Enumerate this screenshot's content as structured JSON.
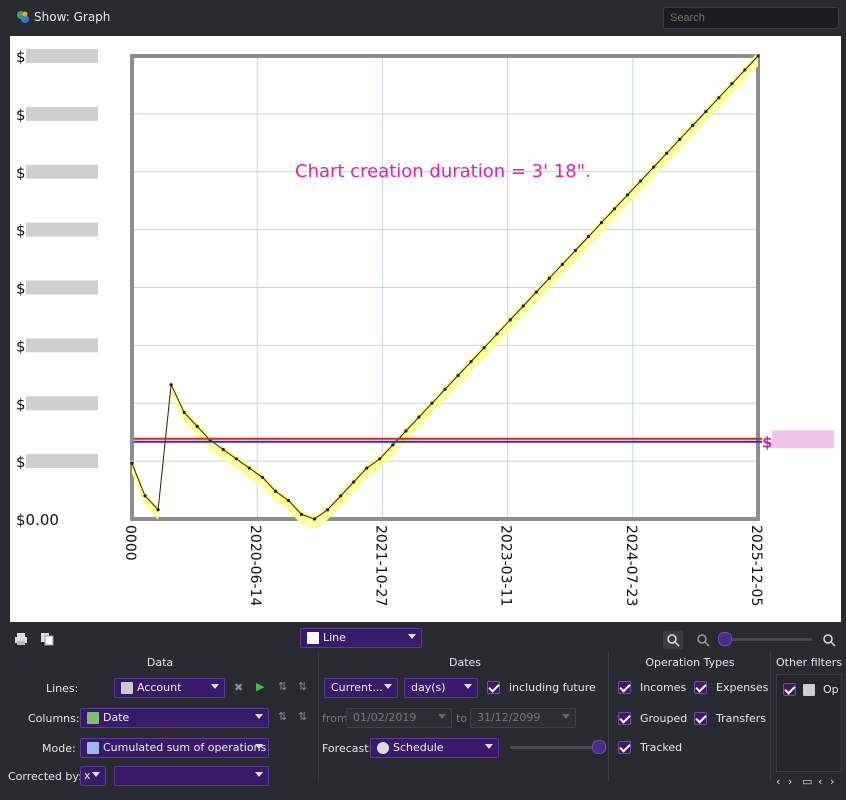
{
  "window": {
    "title": "Show: Graph",
    "search_placeholder": "Search"
  },
  "chart_data": {
    "type": "line",
    "annotation": "Chart creation duration = 3' 18\".",
    "y_tick_labels": [
      "$",
      "$",
      "$",
      "$",
      "$",
      "$",
      "$",
      "$",
      "$0.00"
    ],
    "x_tick_labels": [
      "0000",
      "2020-06-14",
      "2021-10-27",
      "2023-03-11",
      "2024-07-23",
      "2025-12-05"
    ],
    "limit_label": "$",
    "grid": true,
    "legend": "none",
    "series": [
      {
        "values": [
          0.12,
          0.05,
          0.02,
          0.29,
          0.23,
          0.2,
          0.17,
          0.15,
          0.13,
          0.11,
          0.09,
          0.06,
          0.04,
          0.01,
          0.0,
          0.02,
          0.05,
          0.08,
          0.11,
          0.13,
          0.16,
          0.19,
          0.22,
          0.25,
          0.28,
          0.31,
          0.34,
          0.37,
          0.4,
          0.43,
          0.46,
          0.49,
          0.52,
          0.55,
          0.58,
          0.61,
          0.64,
          0.67,
          0.7,
          0.73,
          0.76,
          0.79,
          0.82,
          0.85,
          0.88,
          0.91,
          0.94,
          0.97,
          1.0
        ]
      }
    ],
    "limit_value": 0.17,
    "colors": {
      "line": "#222222",
      "band": "#ffff99",
      "limit_red": "#e0201a",
      "limit_blue": "#2a2ad8",
      "annotation": "#e020b0"
    }
  },
  "controls": {
    "chart_type": "Line",
    "section_data": "Data",
    "section_dates": "Dates",
    "section_operation_types": "Operation Types",
    "section_other_filters": "Other filters",
    "lines_label": "Lines:",
    "lines_value": "Account",
    "columns_label": "Columns:",
    "columns_value": "Date",
    "mode_label": "Mode:",
    "mode_value": "Cumulated sum of operations",
    "corrected_label": "Corrected by:",
    "corrected_value": "x",
    "corrected_value2": "",
    "period_value": "Current...",
    "unit_value": "day(s)",
    "including_future": "including future",
    "from_label": "from",
    "from_value": "01/02/2019",
    "to_label": "to",
    "to_value": "31/12/2099",
    "forecast_label": "Forecast:",
    "forecast_value": "Schedule",
    "incomes": "Incomes",
    "expenses": "Expenses",
    "grouped": "Grouped",
    "transfers": "Transfers",
    "tracked": "Tracked",
    "other_filter_label": "Op"
  }
}
